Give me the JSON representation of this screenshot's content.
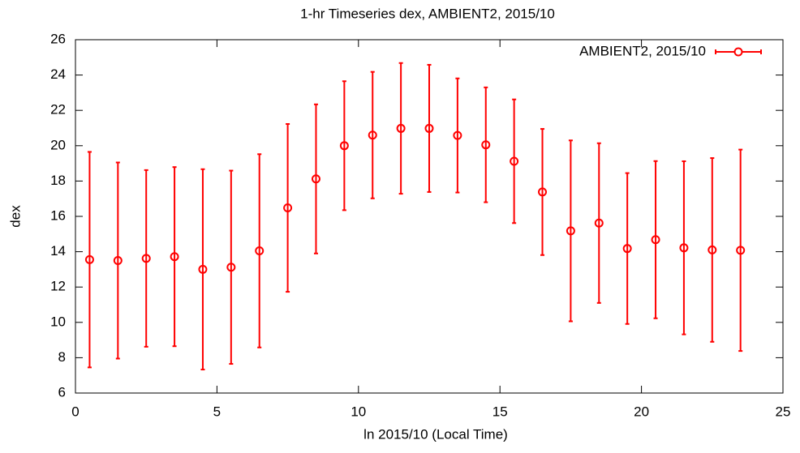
{
  "chart_data": {
    "type": "errorbar",
    "title": "1-hr Timeseries dex, AMBIENT2, 2015/10",
    "x_label": "ln 2015/10 (Local Time)",
    "y_label": "dex",
    "xlim": [
      0,
      25
    ],
    "xticks": [
      0,
      5,
      10,
      15,
      20,
      25
    ],
    "ylim": [
      6,
      26
    ],
    "yticks": [
      6,
      8,
      10,
      12,
      14,
      16,
      18,
      20,
      22,
      24,
      26
    ],
    "grid": false,
    "legend": "top-right",
    "series": [
      {
        "name": "AMBIENT2, 2015/10",
        "color": "#ff0000",
        "x": [
          0.5,
          1.5,
          2.5,
          3.5,
          4.5,
          5.5,
          6.5,
          7.5,
          8.5,
          9.5,
          10.5,
          11.5,
          12.5,
          13.5,
          14.5,
          15.5,
          16.5,
          17.5,
          18.5,
          19.5,
          20.5,
          21.5,
          22.5,
          23.5
        ],
        "values": [
          13.55,
          13.5,
          13.62,
          13.72,
          13.0,
          13.12,
          14.05,
          16.48,
          18.12,
          20.0,
          20.6,
          20.98,
          20.98,
          20.58,
          20.05,
          19.12,
          17.38,
          15.18,
          15.62,
          14.18,
          14.68,
          14.22,
          14.1,
          14.08
        ],
        "errors": [
          6.1,
          5.55,
          5.0,
          5.07,
          5.67,
          5.47,
          5.47,
          4.75,
          4.22,
          3.65,
          3.58,
          3.7,
          3.6,
          3.23,
          3.25,
          3.5,
          3.57,
          5.12,
          4.52,
          4.27,
          4.45,
          4.9,
          5.2,
          5.7
        ]
      }
    ]
  }
}
